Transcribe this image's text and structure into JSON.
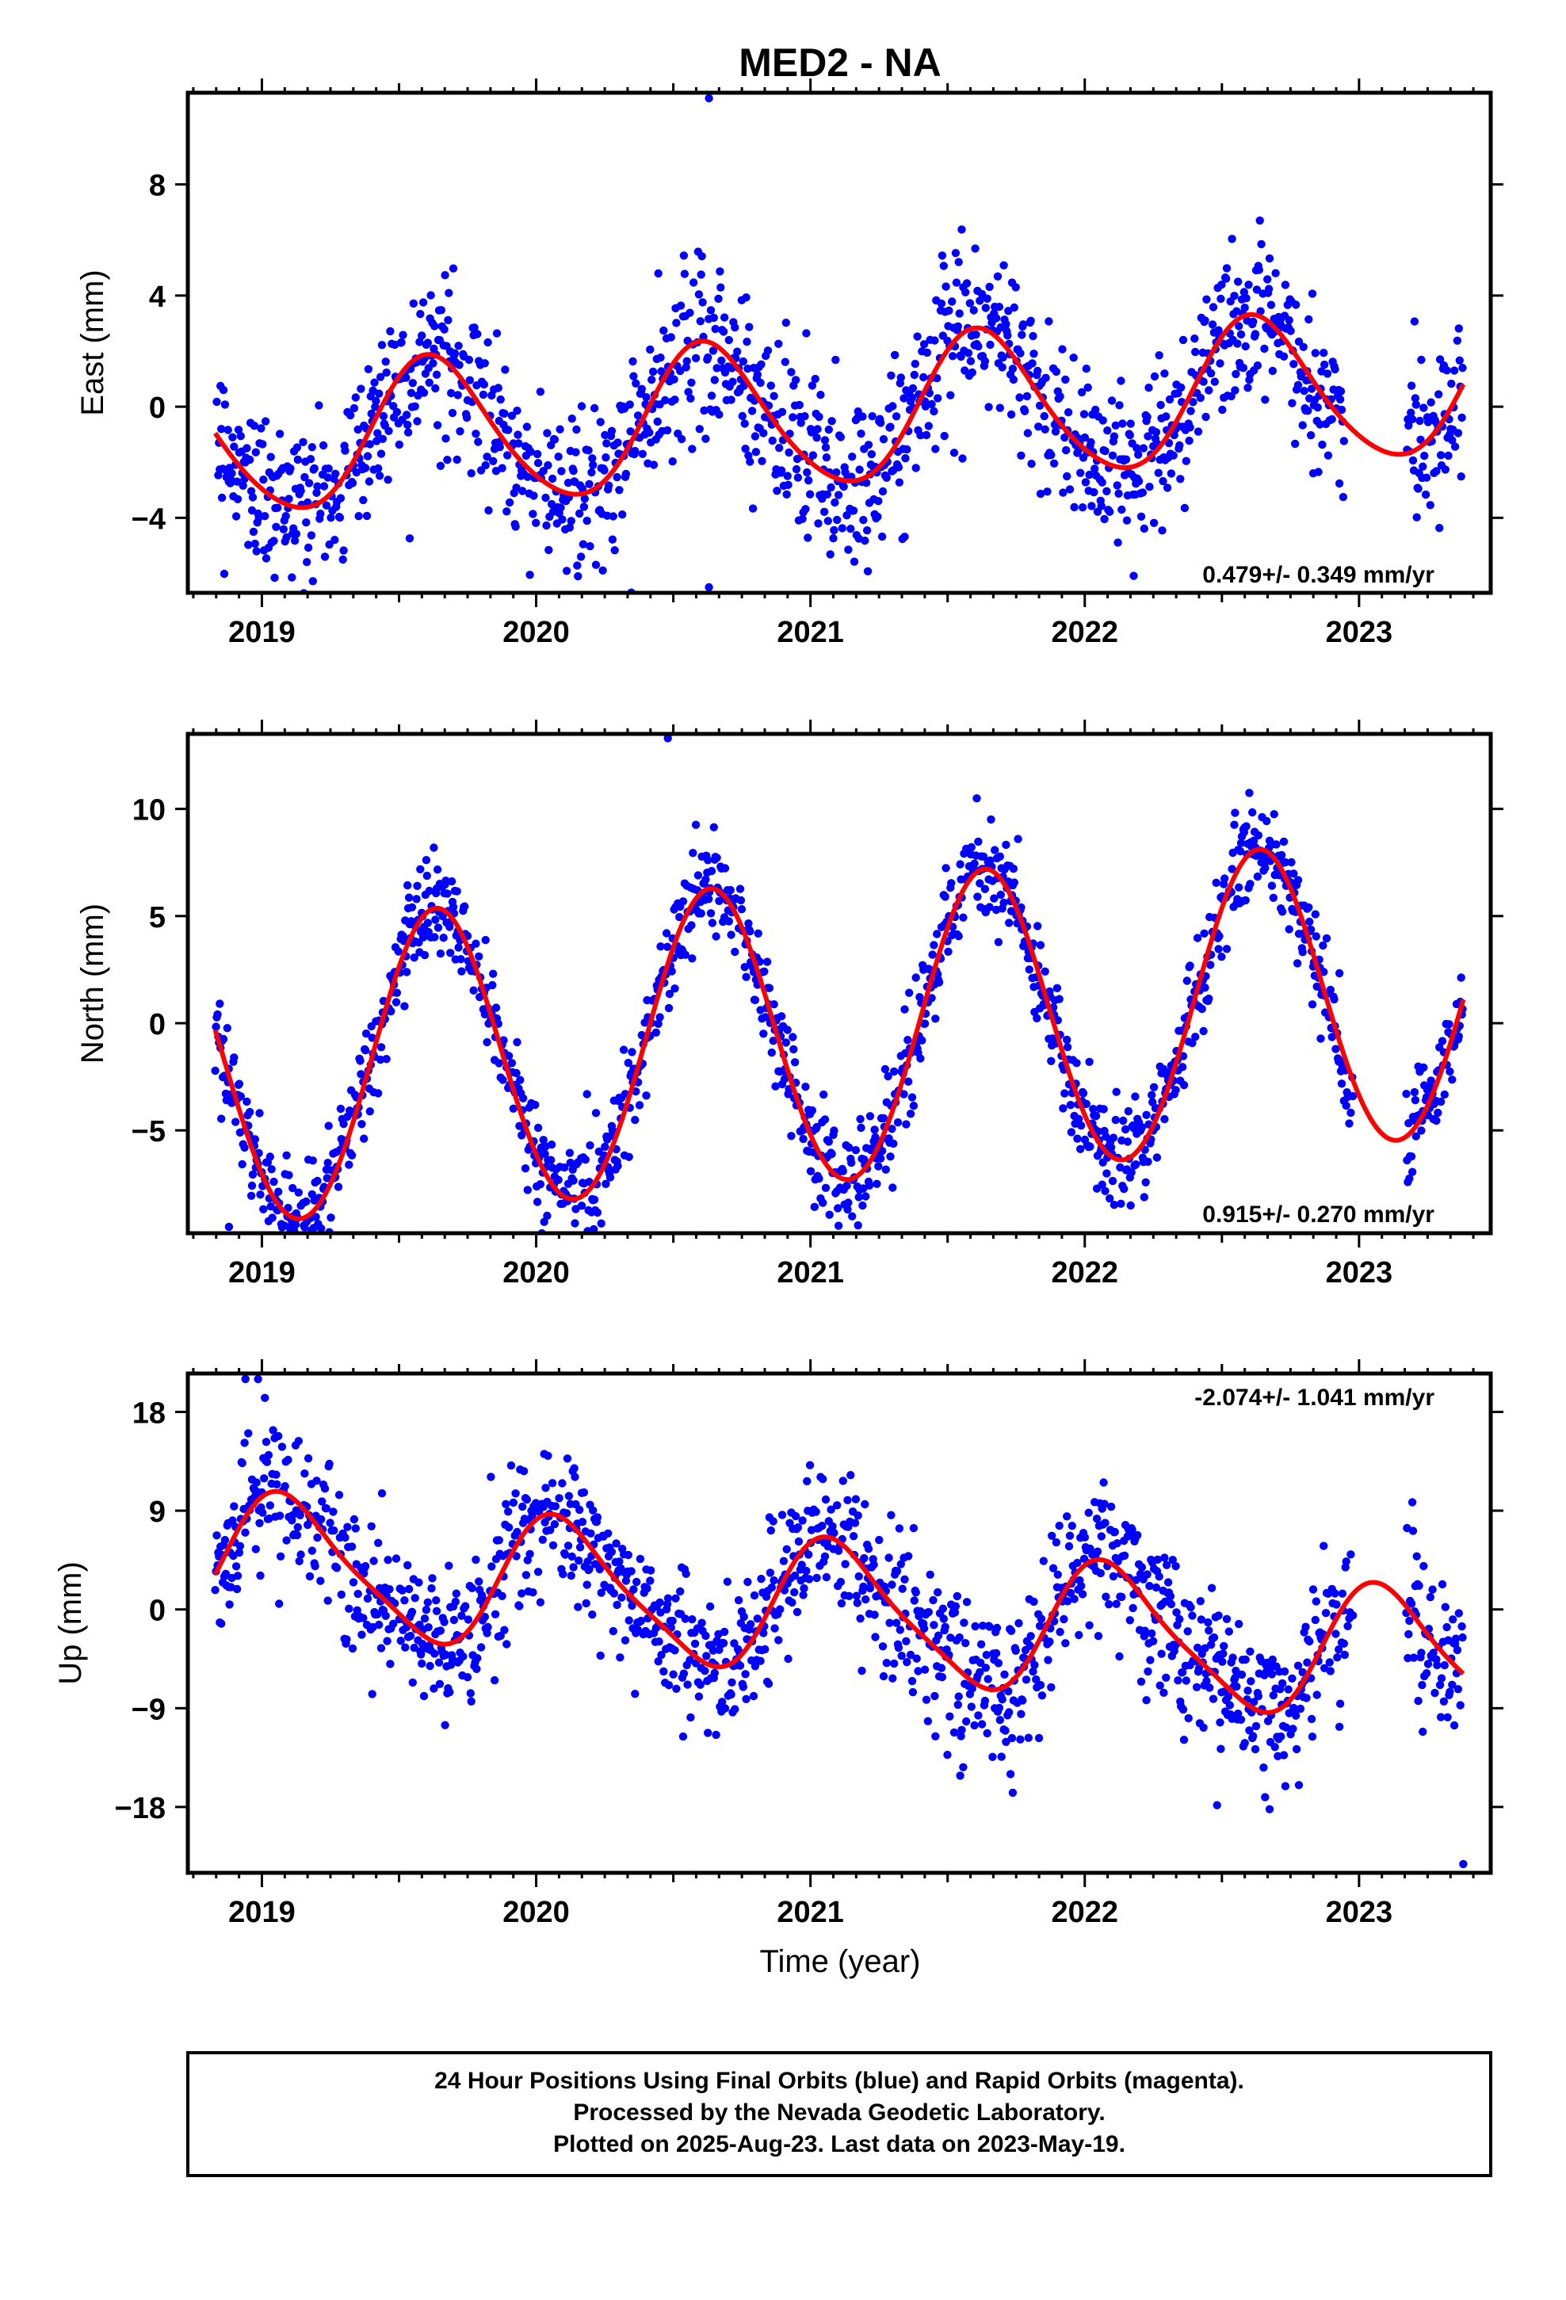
{
  "title": "MED2 - NA",
  "xlabel": "Time (year)",
  "footer": [
    "24 Hour Positions Using Final Orbits (blue) and Rapid Orbits (magenta).",
    "Processed by the Nevada Geodetic Laboratory.",
    "Plotted on 2025-Aug-23. Last data on 2023-May-19."
  ],
  "colors": {
    "points": "#0000ff",
    "fit": "#ff0000",
    "frame": "#000000"
  },
  "chart_data": [
    {
      "type": "scatter",
      "ylabel": "East (mm)",
      "rate": "0.479+/- 0.349 mm/yr",
      "xlim": [
        2018.73,
        2023.48
      ],
      "ylim": [
        -6.7,
        11.3
      ],
      "x_ticks": [
        2019,
        2020,
        2021,
        2022,
        2023
      ],
      "y_ticks": [
        -4,
        0,
        4,
        8
      ],
      "start": 2018.83,
      "end": 2023.38,
      "fit_model": {
        "offset": -0.3,
        "trend_mm_per_yr": 0.479,
        "annual_cos": -1.9,
        "annual_sin": -1.8,
        "semiannual_cos": 0.2,
        "semiannual_sin": 0.2
      },
      "fit_gap_smooth": [
        2022.95,
        2023.15
      ],
      "scatter_sigma": 1.5,
      "data_gap": [
        2022.95,
        2023.17
      ],
      "outliers": [
        [
          2020.63,
          11.1
        ],
        [
          2020.63,
          -6.5
        ]
      ]
    },
    {
      "type": "scatter",
      "ylabel": "North (mm)",
      "rate": "0.915+/- 0.270 mm/yr",
      "xlim": [
        2018.73,
        2023.48
      ],
      "ylim": [
        -9.8,
        13.5
      ],
      "x_ticks": [
        2019,
        2020,
        2021,
        2022,
        2023
      ],
      "y_ticks": [
        -5,
        0,
        5,
        10
      ],
      "start": 2018.83,
      "end": 2023.38,
      "fit_model": {
        "offset": -0.6,
        "trend_mm_per_yr": 0.915,
        "annual_cos": -4.6,
        "annual_sin": -5.3,
        "semiannual_cos": 0.0,
        "semiannual_sin": 0.2
      },
      "scatter_sigma": 1.2,
      "data_gap": [
        2022.98,
        2023.17
      ],
      "outliers": [
        [
          2020.48,
          13.3
        ],
        [
          2018.88,
          -9.5
        ]
      ]
    },
    {
      "type": "scatter",
      "ylabel": "Up (mm)",
      "rate": "-2.074+/- 1.041 mm/yr",
      "xlim": [
        2018.73,
        2023.48
      ],
      "ylim": [
        -24.0,
        21.5
      ],
      "x_ticks": [
        2019,
        2020,
        2021,
        2022,
        2023
      ],
      "y_ticks": [
        -18,
        -9,
        0,
        9,
        18
      ],
      "start": 2018.83,
      "end": 2023.38,
      "fit_model": {
        "offset": 0.1,
        "trend_mm_per_yr": -2.074,
        "annual_cos": 4.8,
        "annual_sin": 3.5,
        "semiannual_cos": 1.2,
        "semiannual_sin": 0.0
      },
      "scatter_sigma": 3.4,
      "data_gap": [
        2022.98,
        2023.17
      ],
      "outliers": [
        [
          2018.94,
          21.0
        ],
        [
          2023.38,
          -23.2
        ]
      ]
    }
  ]
}
